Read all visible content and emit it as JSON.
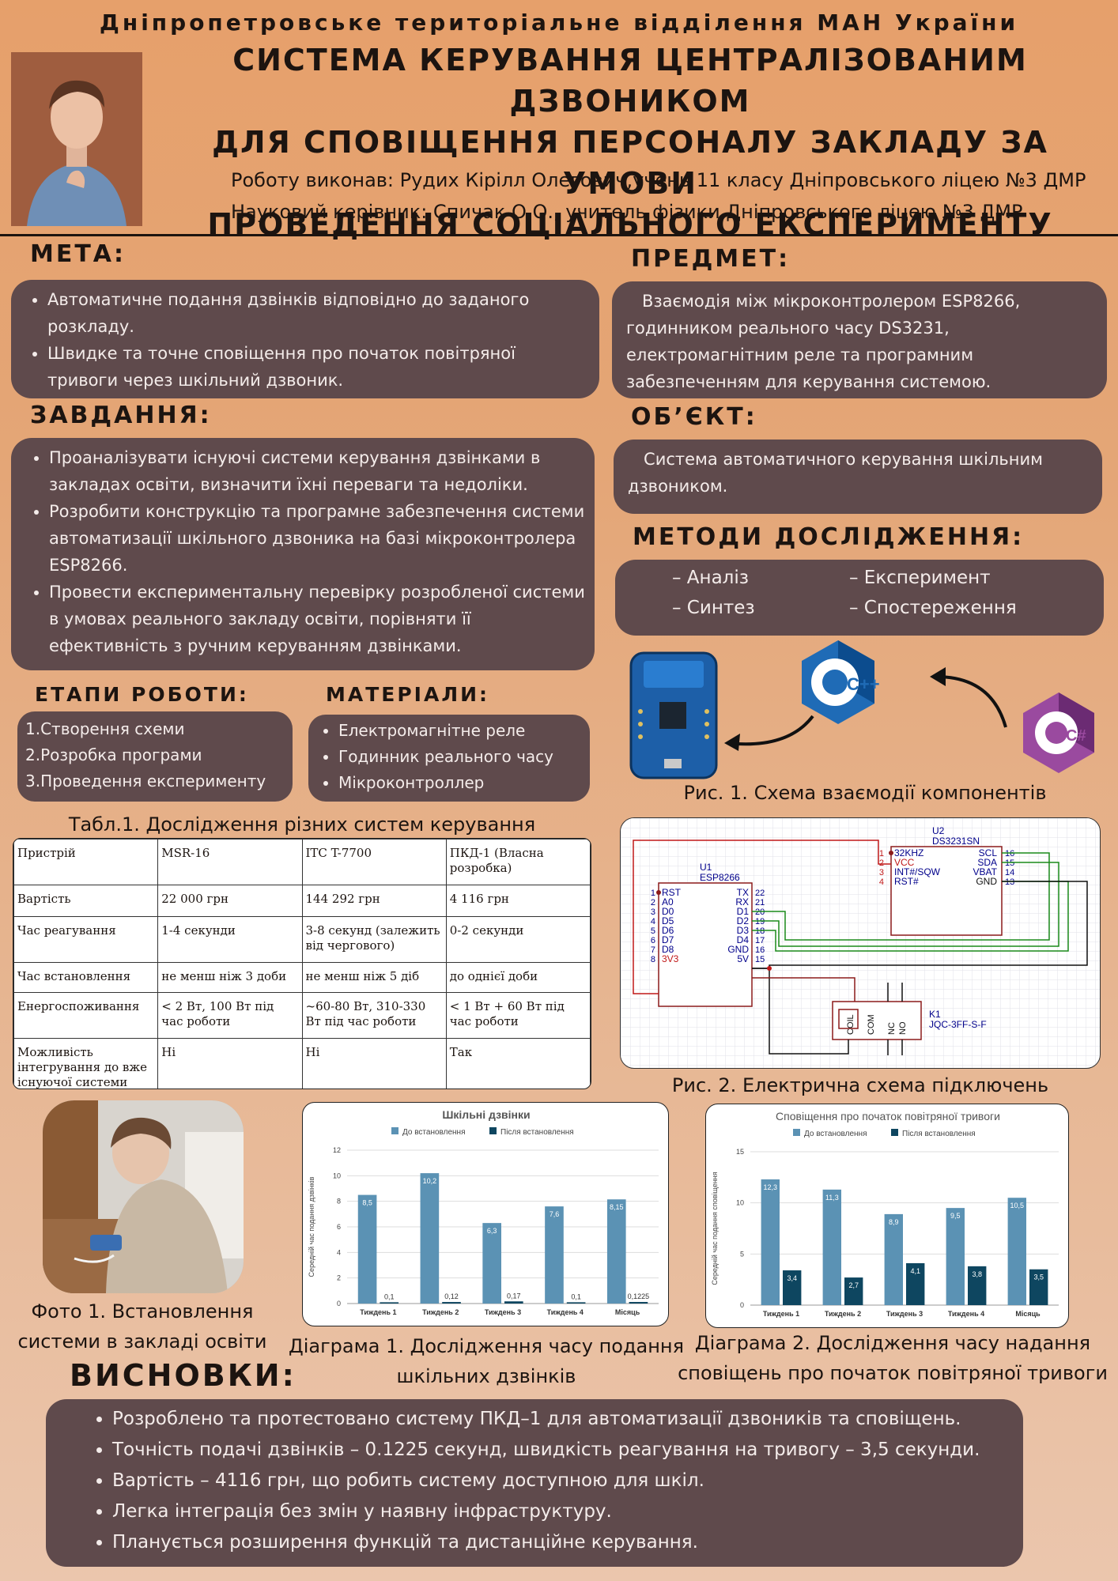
{
  "header": {
    "org": "Дніпропетровське територіальне відділення МАН України",
    "title_lines": [
      "СИСТЕМА КЕРУВАННЯ ЦЕНТРАЛІЗОВАНИМ ДЗВОНИКОМ",
      "ДЛЯ СПОВІЩЕННЯ ПЕРСОНАЛУ ЗАКЛАДУ ЗА УМОВИ",
      "ПРОВЕДЕННЯ СОЦІАЛЬНОГО ЕКСПЕРИМЕНТУ"
    ],
    "author": "Роботу виконав: Рудих Кірілл Олегович,учень 11 класу Дніпровського ліцею №3 ДМР",
    "advisor": "Науковий керівник: Спичак О.О., учитель фізики  Дніпровського ліцею №3 ДМР"
  },
  "meta": {
    "heading": "МЕТА:",
    "items": [
      "Автоматичне подання дзвінків відповідно до заданого розкладу.",
      "Швидке та точне сповіщення про початок повітряної тривоги через шкільний дзвоник."
    ]
  },
  "predmet": {
    "heading": "ПРЕДМЕТ:",
    "text": "   Взаємодія між мікроконтролером ESP8266, годинником реального часу DS3231, електромагнітним реле та програмним забезпеченням для керування системою."
  },
  "zavdannya": {
    "heading": "ЗАВДАННЯ:",
    "items": [
      "Проаналізувати існуючі системи керування дзвінками в закладах освіти, визначити їхні переваги та недоліки.",
      "Розробити конструкцію та програмне забезпечення системи автоматизації шкільного дзвоника на базі мікроконтролера ESP8266.",
      "Провести експериментальну перевірку розробленої системи в умовах реального закладу освіти, порівняти її ефективність з ручним керуванням дзвінками."
    ]
  },
  "obyekt": {
    "heading": "ОБ’ЄКТ:",
    "text": "   Система автоматичного керування шкільним дзвоником."
  },
  "metody": {
    "heading": "МЕТОДИ ДОСЛІДЖЕННЯ:",
    "items": [
      "– Аналіз",
      "– Експеримент",
      "– Синтез",
      "– Спостереження"
    ]
  },
  "etapy": {
    "heading": "ЕТАПИ РОБОТИ:",
    "items": [
      "1.Створення схеми",
      "2.Розробка програми",
      "3.Проведення експерименту"
    ]
  },
  "materialy": {
    "heading": "МАТЕРІАЛИ:",
    "items": [
      "Електромагнітне реле",
      "Годинник реального часу",
      "Мікроконтроллер"
    ]
  },
  "figures": {
    "fig1": "Рис. 1. Схема взаємодії компонентів",
    "fig2": "Рис. 2. Електрична схема підключень",
    "photo1_line1": "Фото 1. Встановлення",
    "photo1_line2": "системи в закладі освіти",
    "diag1_line1": "Діаграма 1. Дослідження часу подання",
    "diag1_line2": "шкільних дзвінків",
    "diag2_line1": "Діаграма 2. Дослідження часу надання",
    "diag2_line2": "сповіщень про початок повітряної тривоги"
  },
  "logos": {
    "cpp": "C++",
    "csharp": "C#"
  },
  "table": {
    "caption": "Табл.1. Дослідження різних систем керування",
    "rows": [
      [
        "Пристрій",
        "MSR-16",
        "ITC T-7700",
        "ПКД-1 (Власна розробка)"
      ],
      [
        "Вартість",
        "22 000 грн",
        "144 292 грн",
        "4 116 грн"
      ],
      [
        "Час реагування",
        "1-4 секунди",
        "3-8 секунд (залежить від чергового)",
        "0-2 секунди"
      ],
      [
        "Час встановлення",
        "не менш ніж 3 доби",
        "не менш ніж 5 діб",
        "до однієї доби"
      ],
      [
        "Енергоспоживання",
        " < 2 Вт, 100 Вт під час роботи",
        " ~60-80 Вт, 310-330 Вт під час роботи",
        "  < 1 Вт + 60 Вт під час роботи"
      ],
      [
        "Можливість інтегрування до вже існуючої системи",
        "Ні",
        "Ні",
        "Так"
      ]
    ]
  },
  "circuit": {
    "u2_ref": "U2",
    "u2_part": "DS3231SN",
    "u2_left_nums": [
      "1",
      "2",
      "3",
      "4"
    ],
    "u2_left": [
      "32KHZ",
      "VCC",
      "INT#/SQW",
      "RST#"
    ],
    "u2_right": [
      "SCL",
      "SDA",
      "VBAT",
      "GND"
    ],
    "u2_right_nums": [
      "16",
      "15",
      "14",
      "13"
    ],
    "u1_ref": "U1",
    "u1_part": "ESP8266",
    "u1_left_nums": [
      "1",
      "2",
      "3",
      "4",
      "5",
      "6",
      "7",
      "8"
    ],
    "u1_left": [
      "RST",
      "A0",
      "D0",
      "D5",
      "D6",
      "D7",
      "D8",
      "3V3"
    ],
    "u1_right": [
      "TX",
      "RX",
      "D1",
      "D2",
      "D3",
      "D4",
      "GND",
      "5V"
    ],
    "u1_right_nums": [
      "22",
      "21",
      "20",
      "19",
      "18",
      "17",
      "16",
      "15"
    ],
    "k1_ref": "K1",
    "k1_part": "JQC-3FF-S-F",
    "k1_pins": [
      "COIL",
      "COM",
      "NC",
      "NO"
    ]
  },
  "chart_data": [
    {
      "type": "bar",
      "title": "Шкільні дзвінки",
      "ylabel": "Середній час подання дзвінків",
      "xlabel": "",
      "ylim": [
        0,
        12
      ],
      "yticks": [
        0,
        2,
        4,
        6,
        8,
        10,
        12
      ],
      "categories": [
        "Тиждень 1",
        "Тиждень 2",
        "Тиждень 3",
        "Тиждень 4",
        "Місяць"
      ],
      "series": [
        {
          "name": "До встановлення",
          "color": "#5b92b4",
          "values": [
            8.5,
            10.2,
            6.3,
            7.6,
            8.15
          ],
          "labels": [
            "8,5",
            "10,2",
            "6,3",
            "7,6",
            "8,15"
          ]
        },
        {
          "name": "Після встановлення",
          "color": "#0e4660",
          "values": [
            0.1,
            0.12,
            0.17,
            0.1,
            0.1225
          ],
          "labels": [
            "0,1",
            "0,12",
            "0,17",
            "0,1",
            "0,1225"
          ]
        }
      ],
      "legend": "top",
      "grid": true
    },
    {
      "type": "bar",
      "title": "Сповіщення про початок повітряної тривоги",
      "ylabel": "Середній час подання сповіщення",
      "xlabel": "",
      "ylim": [
        0,
        15
      ],
      "yticks": [
        0,
        5,
        10,
        15
      ],
      "categories": [
        "Тиждень 1",
        "Тиждень 2",
        "Тиждень 3",
        "Тиждень 4",
        "Місяць"
      ],
      "series": [
        {
          "name": "До встановлення",
          "color": "#5b92b4",
          "values": [
            12.3,
            11.3,
            8.9,
            9.5,
            10.5
          ],
          "labels": [
            "12,3",
            "11,3",
            "8,9",
            "9,5",
            "10,5"
          ]
        },
        {
          "name": "Після встановлення",
          "color": "#0e4660",
          "values": [
            3.4,
            2.7,
            4.1,
            3.8,
            3.5
          ],
          "labels": [
            "3,4",
            "2,7",
            "4,1",
            "3,8",
            "3,5"
          ]
        }
      ],
      "legend": "top",
      "grid": true
    }
  ],
  "vysnovky": {
    "heading": "ВИСНОВКИ:",
    "items": [
      "Розроблено та протестовано систему ПКД–1 для автоматизації дзвоників та сповіщень.",
      "Точність подачі дзвінків – 0.1225 секунд, швидкість реагування на тривогу – 3,5 секунди.",
      "Вартість – 4116 грн, що робить систему доступною для шкіл.",
      "Легка інтеграція без змін у наявну інфраструктуру.",
      "Планується розширення функцій та дистанційне керування."
    ]
  }
}
